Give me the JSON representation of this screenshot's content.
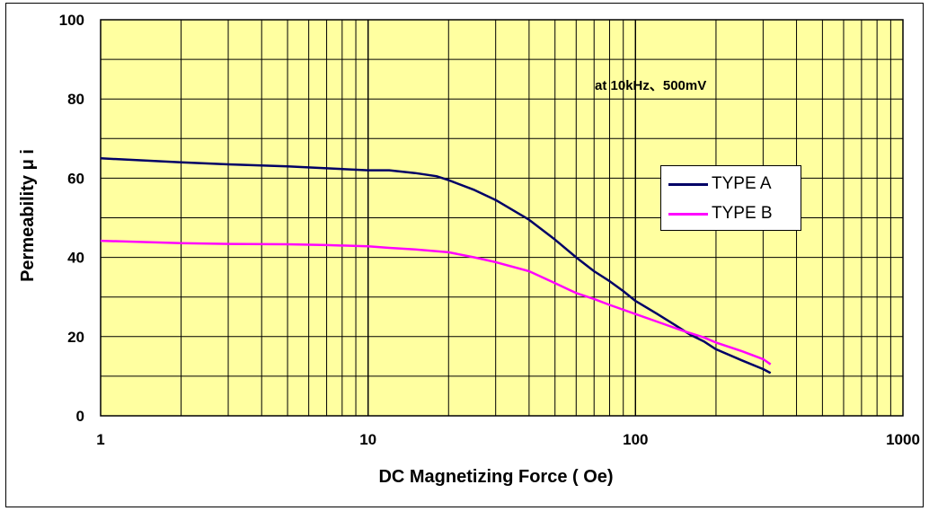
{
  "chart_data": {
    "type": "line",
    "title": "",
    "xlabel": "DC Magnetizing Force ( Oe)",
    "ylabel": "Permeability μ i",
    "x_scale": "log",
    "xlim": [
      1,
      1000
    ],
    "ylim": [
      0,
      100
    ],
    "x_ticks": [
      1,
      10,
      100,
      1000
    ],
    "x_tick_labels": [
      "1",
      "10",
      "100",
      "1000"
    ],
    "y_ticks": [
      0,
      20,
      40,
      60,
      80,
      100
    ],
    "y_tick_labels": [
      "0",
      "20",
      "40",
      "60",
      "80",
      "100"
    ],
    "grid": true,
    "plot_background": "#ffffa0",
    "annotation": "at 10kHz、500mV",
    "legend_position": "right-middle",
    "series": [
      {
        "name": "TYPE A",
        "color": "#000066",
        "x": [
          1,
          2,
          3,
          5,
          7,
          10,
          12,
          15,
          18,
          20,
          25,
          30,
          40,
          50,
          60,
          70,
          80,
          90,
          100,
          120,
          140,
          160,
          180,
          200,
          250,
          300,
          320
        ],
        "y": [
          65,
          64,
          63.5,
          63,
          62.5,
          62,
          62,
          61.3,
          60.5,
          59.5,
          57,
          54.5,
          49.5,
          44.5,
          40,
          36.5,
          34,
          31.5,
          29,
          25.8,
          23,
          20.5,
          18.8,
          16.8,
          14,
          11.8,
          10.8
        ]
      },
      {
        "name": "TYPE B",
        "color": "#ff00ff",
        "x": [
          1,
          2,
          3,
          5,
          7,
          10,
          12,
          15,
          20,
          25,
          30,
          40,
          50,
          60,
          70,
          80,
          100,
          120,
          150,
          180,
          200,
          250,
          300,
          320
        ],
        "y": [
          44.2,
          43.6,
          43.4,
          43.3,
          43.1,
          42.8,
          42.4,
          42,
          41.3,
          40,
          38.8,
          36.5,
          33.5,
          31,
          29.5,
          28,
          25.7,
          23.8,
          21.5,
          19.8,
          18.5,
          16.3,
          14.3,
          13
        ]
      }
    ]
  }
}
